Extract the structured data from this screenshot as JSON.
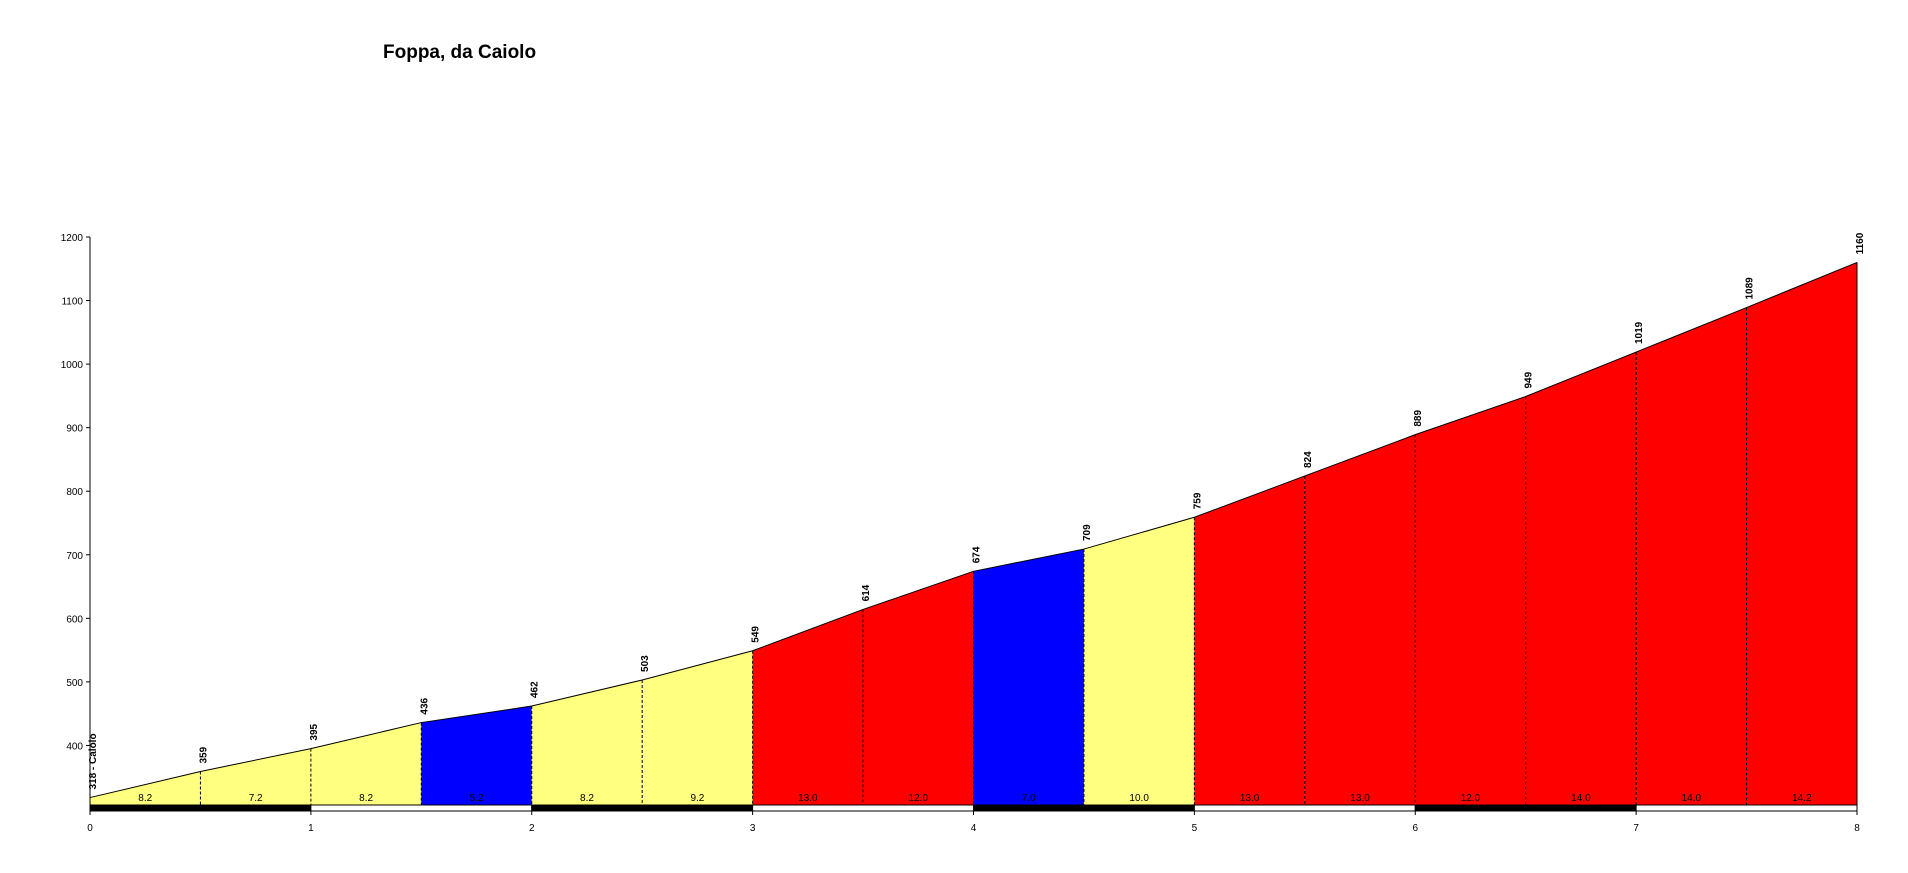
{
  "chart_data": {
    "type": "area",
    "title": "Foppa, da Caiolo",
    "xlim": [
      0,
      8
    ],
    "ylim": [
      300,
      1200
    ],
    "xticks": [
      "0",
      "1",
      "2",
      "3",
      "4",
      "5",
      "6",
      "7",
      "8"
    ],
    "yticks": [
      "400",
      "500",
      "600",
      "700",
      "800",
      "900",
      "1000",
      "1100",
      "1200"
    ],
    "x": [
      0,
      0.5,
      1,
      1.5,
      2,
      2.5,
      3,
      3.5,
      4,
      4.5,
      5,
      5.5,
      6,
      6.5,
      7,
      7.5,
      8
    ],
    "elevations": [
      318,
      359,
      395,
      436,
      462,
      503,
      549,
      614,
      674,
      709,
      759,
      824,
      889,
      949,
      1019,
      1089,
      1160
    ],
    "point_labels": [
      "318 - Caiolo",
      "359",
      "395",
      "436",
      "462",
      "503",
      "549",
      "614",
      "674",
      "709",
      "759",
      "824",
      "889",
      "949",
      "1019",
      "1089",
      "1160"
    ],
    "gradients": [
      "8.2",
      "7.2",
      "8.2",
      "5.2",
      "8.2",
      "9.2",
      "13.0",
      "12.0",
      "7.0",
      "10.0",
      "13.0",
      "13.0",
      "12.0",
      "14.0",
      "14.0",
      "14.2"
    ],
    "segment_colors": [
      "#ffff80",
      "#ffff80",
      "#ffff80",
      "#0000ff",
      "#ffff80",
      "#ffff80",
      "#ff0000",
      "#ff0000",
      "#0000ff",
      "#ffff80",
      "#ff0000",
      "#ff0000",
      "#ff0000",
      "#ff0000",
      "#ff0000",
      "#ff0000"
    ],
    "colors": {
      "outline": "#000000",
      "axis": "#000000",
      "km_bar_dark": "#000000",
      "km_bar_light": "#ffffff"
    }
  }
}
